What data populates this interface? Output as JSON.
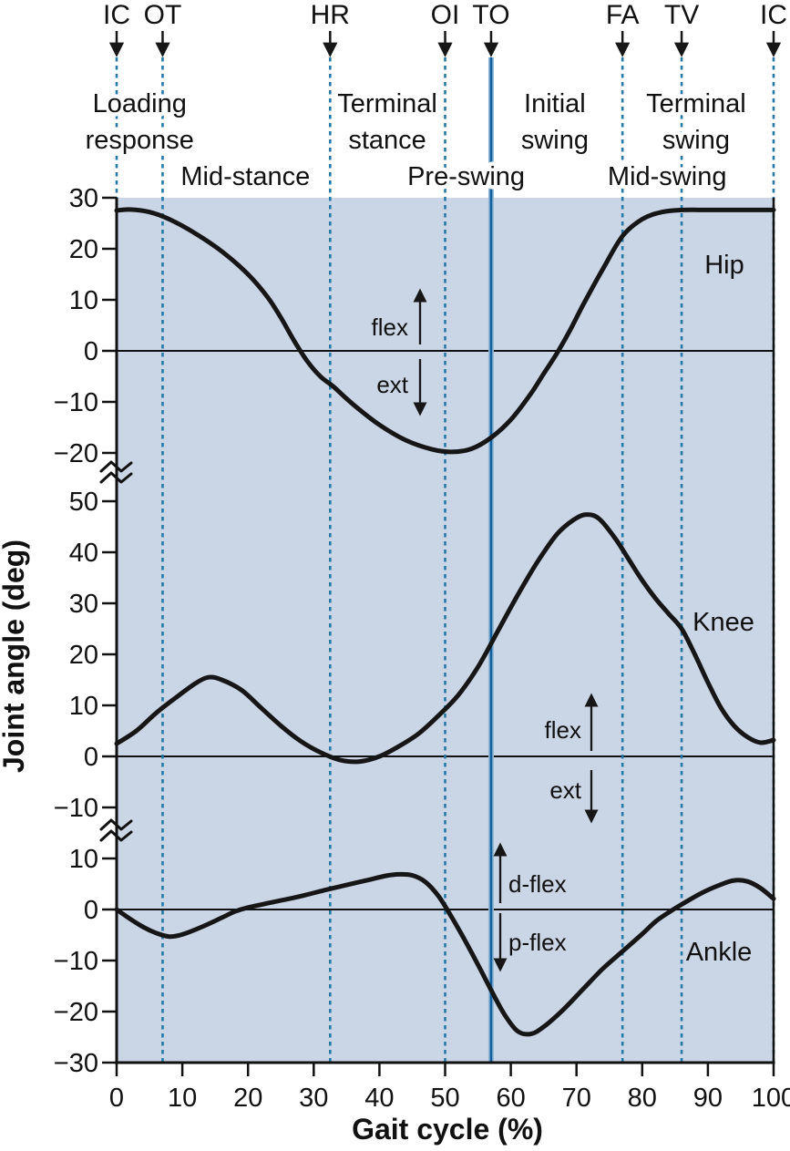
{
  "colors": {
    "plot_background": "#cad5e5",
    "event_line_dashed": "#2579a8",
    "event_line_solid_core": "#135f9e",
    "event_line_solid_glow": "#8fb8d8",
    "curve": "#161616",
    "axis": "#111111",
    "text": "#111111",
    "page_background": "#ffffff"
  },
  "chart_data": {
    "type": "line",
    "title": "",
    "xlabel": "Gait cycle (%)",
    "ylabel": "Joint angle (deg)",
    "x_range": [
      0,
      100
    ],
    "x_ticks": [
      0,
      10,
      20,
      30,
      40,
      50,
      60,
      70,
      80,
      90,
      100
    ],
    "grid": false,
    "legend": "none",
    "events": [
      {
        "label": "IC",
        "pct": 0,
        "style": "dashed"
      },
      {
        "label": "OT",
        "pct": 7,
        "style": "dashed"
      },
      {
        "label": "HR",
        "pct": 32.5,
        "style": "dashed"
      },
      {
        "label": "OI",
        "pct": 50,
        "style": "dashed"
      },
      {
        "label": "TO",
        "pct": 57,
        "style": "solid"
      },
      {
        "label": "FA",
        "pct": 77,
        "style": "dashed"
      },
      {
        "label": "TV",
        "pct": 86,
        "style": "dashed"
      },
      {
        "label": "IC",
        "pct": 100,
        "style": "dashed"
      }
    ],
    "phases": [
      {
        "lines": [
          "Loading",
          "response"
        ],
        "center_pct": 3.5,
        "row": "upper"
      },
      {
        "lines": [
          "Mid-stance"
        ],
        "center_pct": 19.6,
        "row": "lower"
      },
      {
        "lines": [
          "Terminal",
          "stance"
        ],
        "center_pct": 41.2,
        "row": "upper"
      },
      {
        "lines": [
          "Pre-swing"
        ],
        "center_pct": 53.2,
        "row": "lower"
      },
      {
        "lines": [
          "Initial",
          "swing"
        ],
        "center_pct": 66.7,
        "row": "upper"
      },
      {
        "lines": [
          "Mid-swing"
        ],
        "center_pct": 83.8,
        "row": "lower"
      },
      {
        "lines": [
          "Terminal",
          "swing"
        ],
        "center_pct": 88.2,
        "row": "upper"
      }
    ],
    "panels": [
      {
        "id": "hip",
        "label": "Hip",
        "y_ticks": [
          30,
          20,
          10,
          0,
          -10,
          -20
        ],
        "annotations": [
          {
            "text": "flex",
            "direction": "up"
          },
          {
            "text": "ext",
            "direction": "down"
          }
        ],
        "series": [
          [
            0,
            27.5
          ],
          [
            2,
            27.7
          ],
          [
            5,
            27.2
          ],
          [
            8,
            25.8
          ],
          [
            12,
            23
          ],
          [
            16,
            19.5
          ],
          [
            20,
            15
          ],
          [
            23,
            10.5
          ],
          [
            25,
            6.5
          ],
          [
            27,
            2
          ],
          [
            29,
            -2
          ],
          [
            31,
            -5
          ],
          [
            33,
            -7
          ],
          [
            36,
            -10.5
          ],
          [
            40,
            -14.5
          ],
          [
            44,
            -17.5
          ],
          [
            48,
            -19.3
          ],
          [
            51,
            -19.8
          ],
          [
            54,
            -19.2
          ],
          [
            57,
            -17
          ],
          [
            60,
            -13.5
          ],
          [
            63,
            -8.5
          ],
          [
            65,
            -4.5
          ],
          [
            67,
            -0.5
          ],
          [
            69,
            4
          ],
          [
            71,
            9
          ],
          [
            74,
            16
          ],
          [
            77,
            22.5
          ],
          [
            80,
            25.8
          ],
          [
            83,
            27.2
          ],
          [
            86,
            27.6
          ],
          [
            90,
            27.6
          ],
          [
            95,
            27.6
          ],
          [
            100,
            27.6
          ]
        ]
      },
      {
        "id": "knee",
        "label": "Knee",
        "y_ticks": [
          50,
          40,
          30,
          20,
          10,
          0,
          -10
        ],
        "annotations": [
          {
            "text": "flex",
            "direction": "up"
          },
          {
            "text": "ext",
            "direction": "down"
          }
        ],
        "series": [
          [
            0,
            2.5
          ],
          [
            3,
            5
          ],
          [
            6,
            8.5
          ],
          [
            9,
            11.5
          ],
          [
            12,
            14.3
          ],
          [
            14,
            15.5
          ],
          [
            16,
            15
          ],
          [
            19,
            13
          ],
          [
            22,
            9.5
          ],
          [
            25,
            6
          ],
          [
            28,
            3
          ],
          [
            31,
            0.8
          ],
          [
            34,
            -0.7
          ],
          [
            37,
            -1
          ],
          [
            40,
            0
          ],
          [
            43,
            2
          ],
          [
            46,
            4.5
          ],
          [
            49,
            8
          ],
          [
            52,
            12
          ],
          [
            55,
            17.5
          ],
          [
            58,
            24.5
          ],
          [
            61,
            31.5
          ],
          [
            64,
            38
          ],
          [
            67,
            43.5
          ],
          [
            69.5,
            46.3
          ],
          [
            71.5,
            47.4
          ],
          [
            73.5,
            46.5
          ],
          [
            76,
            42.5
          ],
          [
            78,
            38.5
          ],
          [
            80,
            34.5
          ],
          [
            82,
            31
          ],
          [
            84,
            28
          ],
          [
            86,
            25
          ],
          [
            88,
            20
          ],
          [
            90,
            14.5
          ],
          [
            92,
            9.5
          ],
          [
            94,
            6
          ],
          [
            96,
            3.8
          ],
          [
            98,
            2.7
          ],
          [
            100,
            3.2
          ]
        ]
      },
      {
        "id": "ankle",
        "label": "Ankle",
        "y_ticks": [
          10,
          0,
          -10,
          -20,
          -30
        ],
        "annotations": [
          {
            "text": "d-flex",
            "direction": "up"
          },
          {
            "text": "p-flex",
            "direction": "down"
          }
        ],
        "series": [
          [
            0,
            0
          ],
          [
            2,
            -1.8
          ],
          [
            4,
            -3.4
          ],
          [
            6,
            -4.6
          ],
          [
            8,
            -5.3
          ],
          [
            10,
            -4.9
          ],
          [
            13,
            -3.4
          ],
          [
            16,
            -1.6
          ],
          [
            18,
            -0.4
          ],
          [
            20,
            0.4
          ],
          [
            24,
            1.5
          ],
          [
            28,
            2.6
          ],
          [
            32,
            3.9
          ],
          [
            35,
            4.8
          ],
          [
            38,
            5.7
          ],
          [
            41,
            6.6
          ],
          [
            43,
            6.9
          ],
          [
            45,
            6.7
          ],
          [
            47,
            5.4
          ],
          [
            49,
            2.6
          ],
          [
            51,
            -1.5
          ],
          [
            53,
            -6
          ],
          [
            55,
            -10.8
          ],
          [
            57,
            -15.8
          ],
          [
            59,
            -20.5
          ],
          [
            61,
            -23.8
          ],
          [
            63,
            -24.4
          ],
          [
            65,
            -23
          ],
          [
            68,
            -19.6
          ],
          [
            71,
            -15.6
          ],
          [
            74,
            -11.6
          ],
          [
            77,
            -8.2
          ],
          [
            80,
            -4.8
          ],
          [
            82,
            -2.4
          ],
          [
            84,
            -0.6
          ],
          [
            86,
            1
          ],
          [
            89,
            3.2
          ],
          [
            92,
            4.9
          ],
          [
            94,
            5.7
          ],
          [
            96,
            5.5
          ],
          [
            98,
            4.2
          ],
          [
            100,
            2.1
          ]
        ]
      }
    ]
  }
}
